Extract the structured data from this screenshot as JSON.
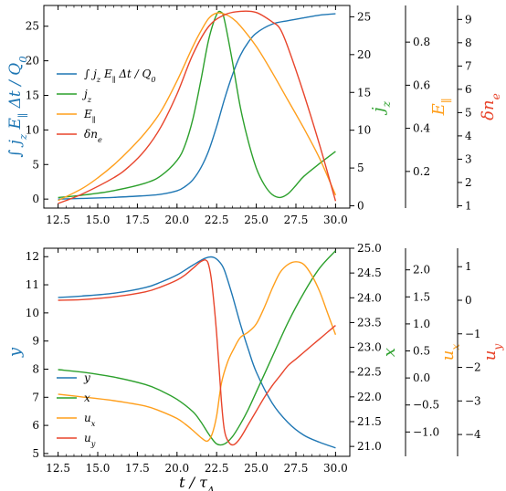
{
  "chart_data": [
    {
      "type": "line",
      "xlabel": "",
      "x_ticks": [
        "12.5",
        "15.0",
        "17.5",
        "20.0",
        "22.5",
        "25.0",
        "27.5",
        "30.0"
      ],
      "xlim": [
        11.6,
        30.9
      ],
      "axes": [
        {
          "id": "left",
          "label": "∫ j_z E_∥ Δt / Q_0",
          "label_color": "#1f77b4",
          "ylim": [
            -1.3,
            28
          ],
          "ticks": [
            "0",
            "5",
            "10",
            "15",
            "20",
            "25"
          ],
          "tick_values": [
            0,
            5,
            10,
            15,
            20,
            25
          ]
        },
        {
          "id": "r1",
          "label": "j_z",
          "label_color": "#2ca02c",
          "ylim": [
            -0.3,
            26.5
          ],
          "ticks": [
            "0",
            "5",
            "10",
            "15",
            "20",
            "25"
          ],
          "tick_values": [
            0,
            5,
            10,
            15,
            20,
            25
          ]
        },
        {
          "id": "r2",
          "label": "E_∥",
          "label_color": "#ff9f1c",
          "ylim": [
            0.03,
            0.97
          ],
          "ticks": [
            "0.2",
            "0.4",
            "0.6",
            "0.8"
          ],
          "tick_values": [
            0.2,
            0.4,
            0.6,
            0.8
          ]
        },
        {
          "id": "r3",
          "label": "δn_e",
          "label_color": "#e8452c",
          "ylim": [
            0.9,
            9.6
          ],
          "ticks": [
            "1",
            "2",
            "3",
            "4",
            "5",
            "6",
            "7",
            "8",
            "9"
          ],
          "tick_values": [
            1,
            2,
            3,
            4,
            5,
            6,
            7,
            8,
            9
          ]
        }
      ],
      "legend": {
        "placement": "center-left",
        "entries": [
          "∫ j_z E_∥ Δt / Q_0",
          "j_z",
          "E_∥",
          "δn_e"
        ]
      },
      "series": [
        {
          "name": "∫ j_z E_∥ Δt / Q_0",
          "axis": "left",
          "color": "#1f77b4",
          "x": [
            12.5,
            14,
            16,
            18,
            19,
            20,
            20.5,
            21,
            21.5,
            22,
            22.5,
            23,
            23.5,
            24,
            24.5,
            25,
            26,
            27,
            28,
            29,
            30
          ],
          "y": [
            0,
            0.1,
            0.25,
            0.5,
            0.7,
            1.2,
            1.8,
            2.8,
            4.5,
            7,
            10.5,
            14.5,
            18,
            20.8,
            22.7,
            24,
            25.3,
            25.8,
            26.2,
            26.6,
            26.8
          ]
        },
        {
          "name": "j_z",
          "axis": "r1",
          "color": "#2ca02c",
          "x": [
            12.5,
            14,
            16,
            18,
            19,
            20,
            20.5,
            21,
            21.5,
            22,
            22.5,
            22.8,
            23,
            23.5,
            24,
            24.5,
            25,
            25.5,
            26,
            26.5,
            27,
            27.5,
            28,
            29,
            30
          ],
          "y": [
            1.1,
            1.4,
            2.0,
            3.0,
            4.0,
            6.0,
            8.0,
            11.5,
            16.5,
            22,
            25.3,
            25.6,
            24.5,
            19,
            13,
            8.5,
            5,
            2.8,
            1.5,
            1.1,
            1.6,
            2.7,
            3.9,
            5.6,
            7.2
          ]
        },
        {
          "name": "E_∥",
          "axis": "r2",
          "color": "#ff9f1c",
          "x": [
            12.5,
            14,
            15,
            16,
            17,
            18,
            19,
            20,
            21,
            21.5,
            22,
            22.5,
            23,
            23.5,
            24,
            25,
            26,
            27,
            28,
            29,
            30
          ],
          "y": [
            0.065,
            0.12,
            0.17,
            0.23,
            0.3,
            0.38,
            0.48,
            0.62,
            0.78,
            0.85,
            0.91,
            0.935,
            0.93,
            0.91,
            0.875,
            0.78,
            0.66,
            0.53,
            0.4,
            0.26,
            0.09
          ]
        },
        {
          "name": "δn_e",
          "axis": "r3",
          "color": "#e8452c",
          "x": [
            12.5,
            14,
            16,
            17,
            18,
            19,
            20,
            21,
            22,
            23,
            24,
            25,
            26,
            26.5,
            27,
            28,
            29,
            30
          ],
          "y": [
            1.1,
            1.5,
            2.2,
            2.7,
            3.4,
            4.4,
            5.8,
            7.5,
            8.7,
            9.2,
            9.35,
            9.3,
            8.9,
            8.6,
            7.8,
            5.8,
            3.6,
            1.2
          ]
        }
      ]
    },
    {
      "type": "line",
      "xlabel": "t / τ_A",
      "x_ticks": [
        "12.5",
        "15.0",
        "17.5",
        "20.0",
        "22.5",
        "25.0",
        "27.5",
        "30.0"
      ],
      "xlim": [
        11.6,
        30.9
      ],
      "axes": [
        {
          "id": "left",
          "label": "y",
          "label_color": "#1f77b4",
          "ylim": [
            4.9,
            12.3
          ],
          "ticks": [
            "5",
            "6",
            "7",
            "8",
            "9",
            "10",
            "11",
            "12"
          ],
          "tick_values": [
            5,
            6,
            7,
            8,
            9,
            10,
            11,
            12
          ]
        },
        {
          "id": "r1",
          "label": "x",
          "label_color": "#2ca02c",
          "ylim": [
            20.8,
            25.0
          ],
          "ticks": [
            "21.0",
            "21.5",
            "22.0",
            "22.5",
            "23.0",
            "23.5",
            "24.0",
            "24.5",
            "25.0"
          ],
          "tick_values": [
            21.0,
            21.5,
            22.0,
            22.5,
            23.0,
            23.5,
            24.0,
            24.5,
            25.0
          ]
        },
        {
          "id": "r2",
          "label": "u_x",
          "label_color": "#ff9f1c",
          "ylim": [
            -1.45,
            2.4
          ],
          "ticks": [
            "−1.0",
            "−0.5",
            "0.0",
            "0.5",
            "1.0",
            "1.5",
            "2.0"
          ],
          "tick_values": [
            -1.0,
            -0.5,
            0.0,
            0.5,
            1.0,
            1.5,
            2.0
          ]
        },
        {
          "id": "r3",
          "label": "u_y",
          "label_color": "#e8452c",
          "ylim": [
            -4.65,
            1.55
          ],
          "ticks": [
            "−4",
            "−3",
            "−2",
            "−1",
            "0",
            "1"
          ],
          "tick_values": [
            -4,
            -3,
            -2,
            -1,
            0,
            1
          ]
        }
      ],
      "legend": {
        "placement": "lower-left",
        "entries": [
          "y",
          "x",
          "u_x",
          "u_y"
        ]
      },
      "series": [
        {
          "name": "y",
          "axis": "left",
          "color": "#1f77b4",
          "x": [
            12.5,
            14,
            16,
            18,
            19,
            20,
            21,
            21.8,
            22.3,
            22.7,
            23,
            23.5,
            24,
            24.5,
            25,
            26,
            27,
            28,
            29,
            30
          ],
          "y": [
            10.55,
            10.6,
            10.7,
            10.9,
            11.1,
            11.35,
            11.7,
            11.95,
            11.98,
            11.8,
            11.5,
            10.6,
            9.6,
            8.7,
            7.9,
            6.8,
            6.1,
            5.65,
            5.4,
            5.2
          ]
        },
        {
          "name": "x",
          "axis": "r1",
          "color": "#2ca02c",
          "x": [
            12.5,
            14,
            16,
            18,
            19,
            20,
            21,
            21.5,
            22,
            22.5,
            23,
            23.5,
            24,
            24.5,
            25,
            26,
            27,
            28,
            29,
            30
          ],
          "y": [
            22.55,
            22.5,
            22.4,
            22.25,
            22.12,
            21.95,
            21.7,
            21.5,
            21.25,
            21.05,
            21.05,
            21.2,
            21.45,
            21.75,
            22.1,
            22.8,
            23.5,
            24.1,
            24.6,
            24.95
          ]
        },
        {
          "name": "u_x",
          "axis": "r2",
          "color": "#ff9f1c",
          "x": [
            12.5,
            14,
            16,
            18,
            19,
            20,
            20.5,
            21,
            21.5,
            21.9,
            22.2,
            22.5,
            22.8,
            23.2,
            23.6,
            24,
            24.5,
            25,
            25.5,
            26,
            26.5,
            27,
            27.5,
            28,
            28.5,
            29,
            29.5,
            30
          ],
          "y": [
            -0.3,
            -0.35,
            -0.42,
            -0.52,
            -0.62,
            -0.75,
            -0.85,
            -0.97,
            -1.1,
            -1.17,
            -1.05,
            -0.7,
            -0.1,
            0.3,
            0.55,
            0.75,
            0.85,
            1.0,
            1.3,
            1.65,
            1.95,
            2.1,
            2.15,
            2.1,
            1.9,
            1.6,
            1.2,
            0.8
          ]
        },
        {
          "name": "u_y",
          "axis": "r3",
          "color": "#e8452c",
          "x": [
            12.5,
            14,
            16,
            18,
            19,
            20,
            20.5,
            21,
            21.5,
            21.8,
            22,
            22.2,
            22.5,
            22.8,
            23,
            23.3,
            23.6,
            24,
            24.5,
            25,
            25.5,
            26,
            26.5,
            27,
            27.5,
            28,
            28.5,
            29,
            29.5,
            30
          ],
          "y": [
            0,
            0.02,
            0.1,
            0.25,
            0.4,
            0.6,
            0.75,
            0.95,
            1.15,
            1.2,
            1.05,
            0.5,
            -1.0,
            -3.0,
            -3.9,
            -4.25,
            -4.3,
            -4.1,
            -3.7,
            -3.3,
            -2.9,
            -2.55,
            -2.25,
            -1.95,
            -1.75,
            -1.55,
            -1.35,
            -1.15,
            -0.95,
            -0.75
          ]
        }
      ]
    }
  ]
}
